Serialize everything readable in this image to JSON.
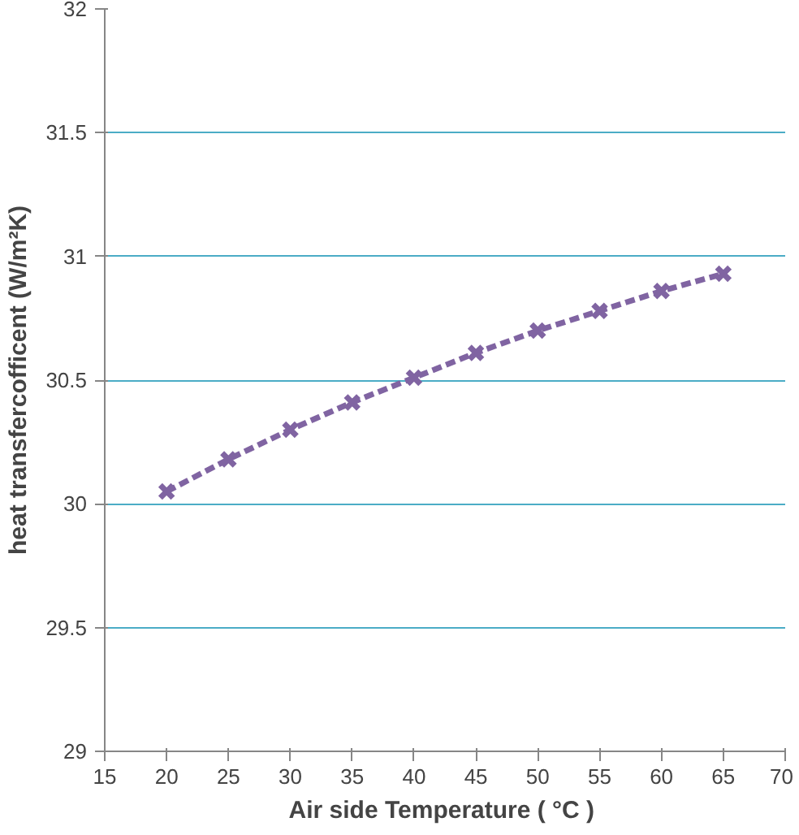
{
  "chart_data": {
    "type": "line",
    "xlabel": "Air side  Temperature ( °C )",
    "ylabel": "heat transfercofficent (W/m²K)",
    "x": [
      20,
      25,
      30,
      35,
      40,
      45,
      50,
      55,
      60,
      65
    ],
    "series": [
      {
        "color": "#8064a2",
        "values": [
          30.05,
          30.18,
          30.3,
          30.41,
          30.51,
          30.61,
          30.7,
          30.78,
          30.86,
          30.93
        ]
      }
    ],
    "xlim": [
      15,
      70
    ],
    "xticks": [
      15,
      20,
      25,
      30,
      35,
      40,
      45,
      50,
      55,
      60,
      65,
      70
    ],
    "ylim": [
      29,
      32
    ],
    "yticks": [
      29,
      {
        "value": 29.5,
        "label": "29.5"
      },
      30,
      {
        "value": 30.5,
        "label": "30.5"
      },
      31,
      {
        "value": 31.5,
        "label": "31.5"
      },
      32
    ],
    "grid": "y",
    "marker": "cross",
    "line_style": "dashed"
  }
}
